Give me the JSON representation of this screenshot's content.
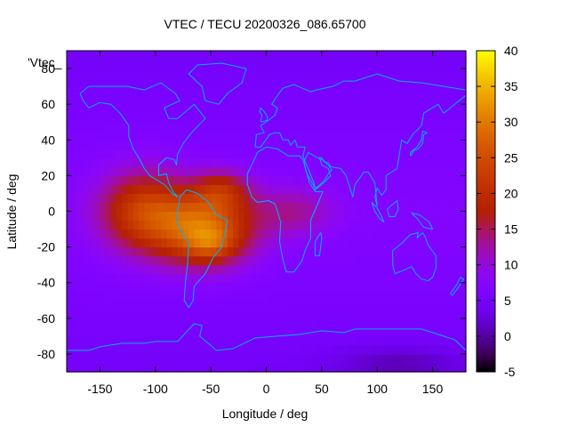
{
  "chart_data": {
    "type": "heatmap",
    "title": "VTEC / TECU 20200326_086.65700",
    "xlabel": "Longitude / deg",
    "ylabel": "Latitude / deg",
    "legend_key": "'Vtec_",
    "xlim": [
      -180,
      180
    ],
    "ylim": [
      -90,
      90
    ],
    "xticks": [
      -150,
      -100,
      -50,
      0,
      50,
      100,
      150
    ],
    "yticks": [
      -80,
      -60,
      -40,
      -20,
      0,
      20,
      40,
      60,
      80
    ],
    "colorbar": {
      "range": [
        -5,
        40
      ],
      "ticks": [
        -5,
        0,
        5,
        10,
        15,
        20,
        25,
        30,
        35,
        40
      ]
    },
    "background_vtec": 7,
    "features": [
      {
        "name": "equatorial-anomaly-west",
        "lon": -110,
        "lat": 0,
        "peak_vtec": 16,
        "sigma_lon": 28,
        "sigma_lat": 16
      },
      {
        "name": "equatorial-anomaly-main",
        "lon": -55,
        "lat": -10,
        "peak_vtec": 21,
        "sigma_lon": 30,
        "sigma_lat": 14
      },
      {
        "name": "north-crest",
        "lon": -40,
        "lat": 12,
        "peak_vtec": 10,
        "sigma_lon": 18,
        "sigma_lat": 8
      },
      {
        "name": "south-crest",
        "lon": -50,
        "lat": -18,
        "peak_vtec": 6,
        "sigma_lon": 14,
        "sigma_lat": 6
      },
      {
        "name": "atlantic-extension",
        "lon": 25,
        "lat": 0,
        "peak_vtec": 6,
        "sigma_lon": 25,
        "sigma_lat": 10
      },
      {
        "name": "polar-low",
        "lon": 120,
        "lat": -85,
        "peak_vtec": -4,
        "sigma_lon": 40,
        "sigma_lat": 6
      }
    ],
    "coastlines": [
      {
        "name": "north-america",
        "points": [
          [
            -168,
            66
          ],
          [
            -160,
            70
          ],
          [
            -140,
            70
          ],
          [
            -125,
            70
          ],
          [
            -110,
            68
          ],
          [
            -95,
            72
          ],
          [
            -82,
            66
          ],
          [
            -78,
            62
          ],
          [
            -92,
            58
          ],
          [
            -88,
            52
          ],
          [
            -80,
            52
          ],
          [
            -65,
            60
          ],
          [
            -55,
            52
          ],
          [
            -66,
            45
          ],
          [
            -70,
            42
          ],
          [
            -75,
            38
          ],
          [
            -80,
            32
          ],
          [
            -81,
            26
          ],
          [
            -83,
            29
          ],
          [
            -90,
            30
          ],
          [
            -97,
            26
          ],
          [
            -97,
            20
          ],
          [
            -90,
            21
          ],
          [
            -88,
            16
          ],
          [
            -84,
            11
          ],
          [
            -80,
            8
          ],
          [
            -85,
            10
          ],
          [
            -92,
            15
          ],
          [
            -105,
            20
          ],
          [
            -110,
            24
          ],
          [
            -115,
            30
          ],
          [
            -120,
            35
          ],
          [
            -124,
            42
          ],
          [
            -124,
            48
          ],
          [
            -132,
            55
          ],
          [
            -140,
            60
          ],
          [
            -150,
            61
          ],
          [
            -160,
            58
          ],
          [
            -165,
            62
          ],
          [
            -168,
            66
          ]
        ]
      },
      {
        "name": "south-america",
        "points": [
          [
            -78,
            8
          ],
          [
            -72,
            12
          ],
          [
            -62,
            10
          ],
          [
            -52,
            5
          ],
          [
            -45,
            -2
          ],
          [
            -35,
            -5
          ],
          [
            -37,
            -12
          ],
          [
            -40,
            -20
          ],
          [
            -48,
            -26
          ],
          [
            -55,
            -35
          ],
          [
            -65,
            -42
          ],
          [
            -66,
            -50
          ],
          [
            -70,
            -54
          ],
          [
            -74,
            -50
          ],
          [
            -73,
            -40
          ],
          [
            -71,
            -30
          ],
          [
            -70,
            -18
          ],
          [
            -76,
            -12
          ],
          [
            -81,
            -5
          ],
          [
            -80,
            0
          ],
          [
            -78,
            8
          ]
        ]
      },
      {
        "name": "greenland",
        "points": [
          [
            -55,
            62
          ],
          [
            -43,
            60
          ],
          [
            -35,
            66
          ],
          [
            -22,
            72
          ],
          [
            -18,
            80
          ],
          [
            -40,
            83
          ],
          [
            -62,
            82
          ],
          [
            -70,
            77
          ],
          [
            -58,
            70
          ],
          [
            -55,
            62
          ]
        ]
      },
      {
        "name": "eurasia",
        "points": [
          [
            -10,
            36
          ],
          [
            -9,
            43
          ],
          [
            -2,
            44
          ],
          [
            -5,
            48
          ],
          [
            2,
            51
          ],
          [
            8,
            54
          ],
          [
            10,
            58
          ],
          [
            5,
            60
          ],
          [
            8,
            63
          ],
          [
            15,
            69
          ],
          [
            25,
            71
          ],
          [
            40,
            67
          ],
          [
            45,
            68
          ],
          [
            60,
            70
          ],
          [
            70,
            73
          ],
          [
            80,
            73
          ],
          [
            100,
            77
          ],
          [
            120,
            73
          ],
          [
            140,
            72
          ],
          [
            160,
            70
          ],
          [
            180,
            68
          ],
          [
            180,
            65
          ],
          [
            170,
            60
          ],
          [
            160,
            55
          ],
          [
            155,
            60
          ],
          [
            142,
            55
          ],
          [
            140,
            48
          ],
          [
            132,
            43
          ],
          [
            127,
            38
          ],
          [
            122,
            40
          ],
          [
            120,
            32
          ],
          [
            118,
            24
          ],
          [
            108,
            20
          ],
          [
            108,
            12
          ],
          [
            104,
            9
          ],
          [
            100,
            13
          ],
          [
            98,
            8
          ],
          [
            100,
            3
          ],
          [
            98,
            16
          ],
          [
            92,
            22
          ],
          [
            88,
            22
          ],
          [
            80,
            15
          ],
          [
            78,
            8
          ],
          [
            72,
            20
          ],
          [
            67,
            24
          ],
          [
            58,
            25
          ],
          [
            56,
            27
          ],
          [
            52,
            28
          ],
          [
            50,
            30
          ],
          [
            48,
            30
          ],
          [
            50,
            26
          ],
          [
            56,
            24
          ],
          [
            58,
            20
          ],
          [
            52,
            16
          ],
          [
            44,
            12
          ],
          [
            43,
            16
          ],
          [
            39,
            22
          ],
          [
            35,
            28
          ],
          [
            33,
            31
          ],
          [
            35,
            36
          ],
          [
            28,
            36
          ],
          [
            26,
            40
          ],
          [
            22,
            37
          ],
          [
            20,
            40
          ],
          [
            15,
            40
          ],
          [
            12,
            44
          ],
          [
            8,
            44
          ],
          [
            3,
            43
          ],
          [
            -5,
            36
          ],
          [
            -10,
            36
          ]
        ]
      },
      {
        "name": "africa",
        "points": [
          [
            -17,
            21
          ],
          [
            -17,
            15
          ],
          [
            -13,
            8
          ],
          [
            -8,
            5
          ],
          [
            2,
            6
          ],
          [
            8,
            4
          ],
          [
            10,
            0
          ],
          [
            13,
            -6
          ],
          [
            12,
            -17
          ],
          [
            15,
            -27
          ],
          [
            18,
            -34
          ],
          [
            25,
            -34
          ],
          [
            32,
            -28
          ],
          [
            35,
            -22
          ],
          [
            40,
            -15
          ],
          [
            40,
            -5
          ],
          [
            45,
            2
          ],
          [
            51,
            11
          ],
          [
            44,
            11
          ],
          [
            39,
            16
          ],
          [
            33,
            29
          ],
          [
            30,
            31
          ],
          [
            20,
            31
          ],
          [
            10,
            35
          ],
          [
            0,
            36
          ],
          [
            -8,
            33
          ],
          [
            -10,
            30
          ],
          [
            -17,
            21
          ]
        ]
      },
      {
        "name": "madagascar",
        "points": [
          [
            44,
            -25
          ],
          [
            48,
            -25
          ],
          [
            50,
            -15
          ],
          [
            49,
            -12
          ],
          [
            44,
            -17
          ],
          [
            44,
            -25
          ]
        ]
      },
      {
        "name": "arabia-horn",
        "points": [
          [
            34,
            28
          ],
          [
            36,
            22
          ],
          [
            43,
            14
          ],
          [
            45,
            13
          ],
          [
            52,
            17
          ],
          [
            57,
            22
          ],
          [
            59,
            23
          ],
          [
            56,
            26
          ],
          [
            50,
            29
          ],
          [
            46,
            30
          ],
          [
            38,
            33
          ],
          [
            34,
            28
          ]
        ]
      },
      {
        "name": "australia",
        "points": [
          [
            114,
            -22
          ],
          [
            122,
            -18
          ],
          [
            130,
            -13
          ],
          [
            137,
            -12
          ],
          [
            136,
            -15
          ],
          [
            141,
            -12
          ],
          [
            143,
            -14
          ],
          [
            146,
            -19
          ],
          [
            153,
            -25
          ],
          [
            153,
            -32
          ],
          [
            150,
            -37
          ],
          [
            146,
            -39
          ],
          [
            140,
            -38
          ],
          [
            135,
            -35
          ],
          [
            131,
            -31
          ],
          [
            124,
            -33
          ],
          [
            116,
            -35
          ],
          [
            114,
            -30
          ],
          [
            114,
            -22
          ]
        ]
      },
      {
        "name": "antarctica",
        "points": [
          [
            -180,
            -78
          ],
          [
            -160,
            -78
          ],
          [
            -150,
            -76
          ],
          [
            -130,
            -74
          ],
          [
            -110,
            -74
          ],
          [
            -100,
            -73
          ],
          [
            -80,
            -73
          ],
          [
            -65,
            -63
          ],
          [
            -58,
            -64
          ],
          [
            -60,
            -70
          ],
          [
            -45,
            -78
          ],
          [
            -30,
            -77
          ],
          [
            -10,
            -71
          ],
          [
            10,
            -70
          ],
          [
            30,
            -69
          ],
          [
            50,
            -67
          ],
          [
            70,
            -68
          ],
          [
            80,
            -66
          ],
          [
            100,
            -66
          ],
          [
            120,
            -66
          ],
          [
            140,
            -66
          ],
          [
            160,
            -70
          ],
          [
            170,
            -72
          ],
          [
            180,
            -78
          ]
        ]
      },
      {
        "name": "indonesia",
        "points": [
          [
            95,
            5
          ],
          [
            100,
            2
          ],
          [
            104,
            -3
          ],
          [
            106,
            -6
          ],
          [
            102,
            -4
          ],
          [
            98,
            0
          ],
          [
            95,
            5
          ]
        ]
      },
      {
        "name": "borneo",
        "points": [
          [
            109,
            1
          ],
          [
            114,
            4
          ],
          [
            118,
            6
          ],
          [
            119,
            1
          ],
          [
            116,
            -3
          ],
          [
            111,
            -3
          ],
          [
            109,
            1
          ]
        ]
      },
      {
        "name": "new-guinea",
        "points": [
          [
            131,
            -1
          ],
          [
            138,
            -2
          ],
          [
            147,
            -6
          ],
          [
            150,
            -10
          ],
          [
            142,
            -9
          ],
          [
            136,
            -4
          ],
          [
            131,
            -1
          ]
        ]
      },
      {
        "name": "japan",
        "points": [
          [
            130,
            31
          ],
          [
            133,
            34
          ],
          [
            137,
            35
          ],
          [
            141,
            38
          ],
          [
            142,
            43
          ],
          [
            145,
            44
          ],
          [
            141,
            45
          ],
          [
            140,
            40
          ],
          [
            136,
            36
          ],
          [
            130,
            33
          ],
          [
            130,
            31
          ]
        ]
      },
      {
        "name": "great-britain",
        "points": [
          [
            -5,
            50
          ],
          [
            1,
            51
          ],
          [
            1,
            53
          ],
          [
            -2,
            56
          ],
          [
            -5,
            58
          ],
          [
            -6,
            56
          ],
          [
            -4,
            54
          ],
          [
            -5,
            50
          ]
        ]
      },
      {
        "name": "new-zealand",
        "points": [
          [
            166,
            -46
          ],
          [
            172,
            -41
          ],
          [
            175,
            -37
          ],
          [
            178,
            -38
          ],
          [
            174,
            -42
          ],
          [
            168,
            -47
          ],
          [
            166,
            -46
          ]
        ]
      }
    ]
  }
}
